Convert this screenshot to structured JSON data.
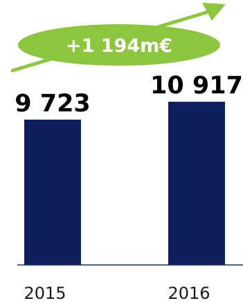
{
  "chart_data": {
    "type": "bar",
    "categories": [
      "2015",
      "2016"
    ],
    "values": [
      9723,
      10917
    ],
    "value_labels": [
      "9 723",
      "10 917"
    ],
    "ylim": [
      0,
      11800
    ],
    "grid": false,
    "annotation": "+1 194m€"
  },
  "colors": {
    "bar": "#0d1f5c",
    "axis": "#1c2e60",
    "badge": "#8cc63f",
    "arrow": "#8cc63f"
  },
  "icons": [
    "trend-up-arrow-icon"
  ]
}
